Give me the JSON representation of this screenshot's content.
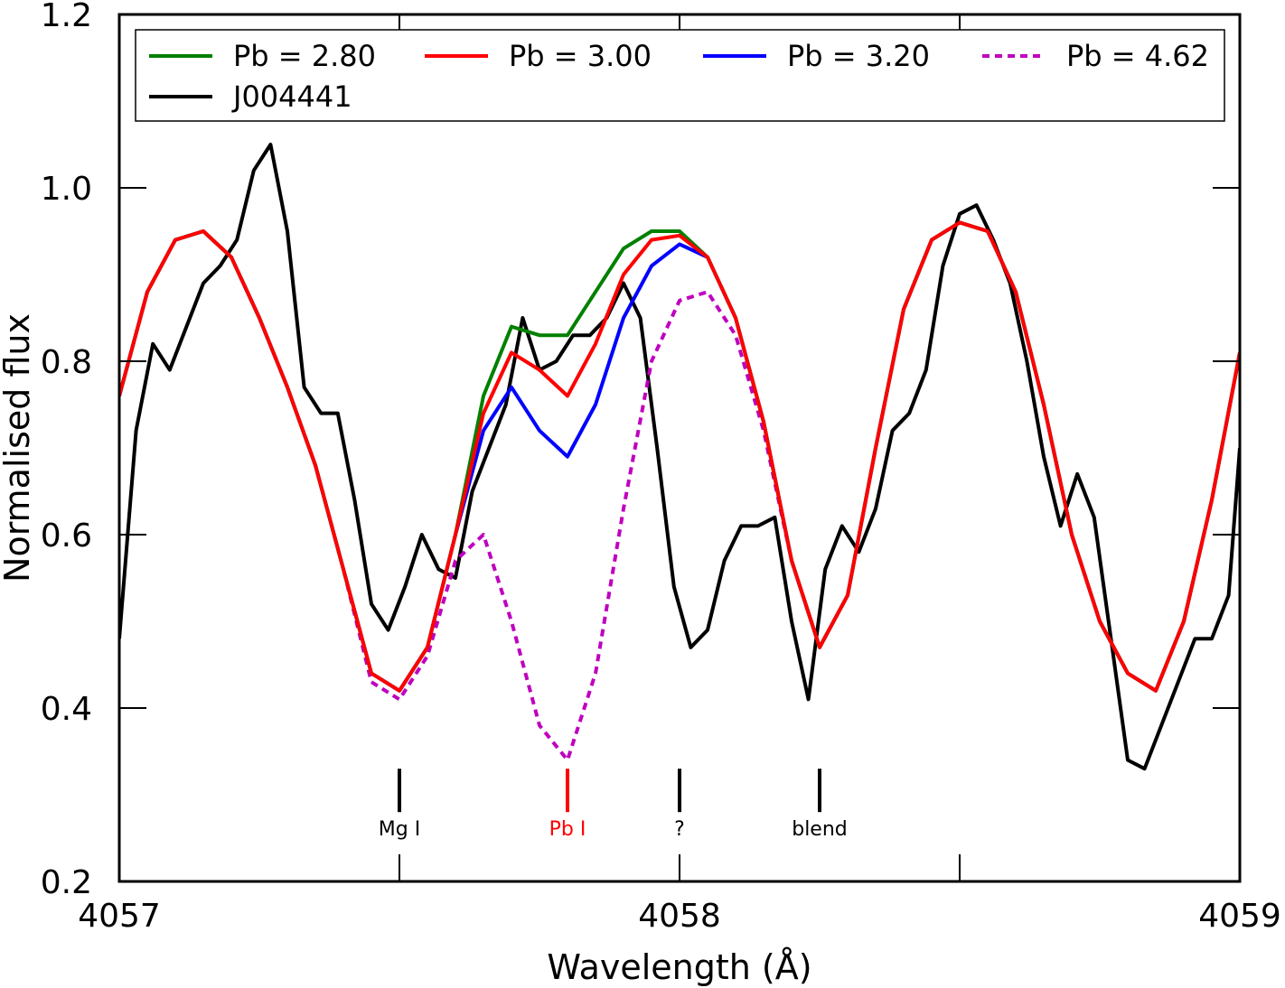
{
  "chart_data": {
    "type": "line",
    "xlabel": "Wavelength (Å)",
    "ylabel": "Normalised flux",
    "xlim": [
      4057,
      4059
    ],
    "ylim": [
      0.2,
      1.2
    ],
    "x_ticks": [
      4057,
      4058,
      4059
    ],
    "x_tick_labels": [
      "4057",
      "4058",
      "4059"
    ],
    "x_minor_ticks": [
      4057.5,
      4058.5
    ],
    "y_ticks": [
      0.2,
      0.4,
      0.6,
      0.8,
      1.0,
      1.2
    ],
    "y_tick_labels": [
      "0.2",
      "0.4",
      "0.6",
      "0.8",
      "1.0",
      "1.2"
    ],
    "legend_position": "top",
    "series": [
      {
        "name": "Pb = 2.80",
        "color": "#008000",
        "dash": false,
        "x": [
          4057.0,
          4057.05,
          4057.1,
          4057.15,
          4057.2,
          4057.25,
          4057.3,
          4057.35,
          4057.4,
          4057.45,
          4057.5,
          4057.55,
          4057.6,
          4057.65,
          4057.7,
          4057.75,
          4057.8,
          4057.85,
          4057.9,
          4057.95,
          4058.0,
          4058.05,
          4058.1,
          4058.15,
          4058.2,
          4058.25,
          4058.3,
          4058.35,
          4058.4,
          4058.45,
          4058.5,
          4058.55,
          4058.6,
          4058.65,
          4058.7,
          4058.75,
          4058.8,
          4058.85,
          4058.9,
          4058.95,
          4059.0
        ],
        "y": [
          0.76,
          0.88,
          0.94,
          0.95,
          0.92,
          0.85,
          0.77,
          0.68,
          0.56,
          0.44,
          0.42,
          0.47,
          0.6,
          0.76,
          0.84,
          0.83,
          0.83,
          0.88,
          0.93,
          0.95,
          0.95,
          0.92,
          0.85,
          0.73,
          0.57,
          0.47,
          0.53,
          0.7,
          0.86,
          0.94,
          0.96,
          0.95,
          0.88,
          0.75,
          0.6,
          0.5,
          0.44,
          0.42,
          0.5,
          0.64,
          0.81
        ]
      },
      {
        "name": "Pb = 3.00",
        "color": "#ff0000",
        "dash": false,
        "x": [
          4057.0,
          4057.05,
          4057.1,
          4057.15,
          4057.2,
          4057.25,
          4057.3,
          4057.35,
          4057.4,
          4057.45,
          4057.5,
          4057.55,
          4057.6,
          4057.65,
          4057.7,
          4057.75,
          4057.8,
          4057.85,
          4057.9,
          4057.95,
          4058.0,
          4058.05,
          4058.1,
          4058.15,
          4058.2,
          4058.25,
          4058.3,
          4058.35,
          4058.4,
          4058.45,
          4058.5,
          4058.55,
          4058.6,
          4058.65,
          4058.7,
          4058.75,
          4058.8,
          4058.85,
          4058.9,
          4058.95,
          4059.0
        ],
        "y": [
          0.76,
          0.88,
          0.94,
          0.95,
          0.92,
          0.85,
          0.77,
          0.68,
          0.56,
          0.44,
          0.42,
          0.47,
          0.6,
          0.74,
          0.81,
          0.79,
          0.76,
          0.82,
          0.9,
          0.94,
          0.945,
          0.92,
          0.85,
          0.73,
          0.57,
          0.47,
          0.53,
          0.7,
          0.86,
          0.94,
          0.96,
          0.95,
          0.88,
          0.75,
          0.6,
          0.5,
          0.44,
          0.42,
          0.5,
          0.64,
          0.81
        ]
      },
      {
        "name": "Pb = 3.20",
        "color": "#0000ff",
        "dash": false,
        "x": [
          4057.0,
          4057.05,
          4057.1,
          4057.15,
          4057.2,
          4057.25,
          4057.3,
          4057.35,
          4057.4,
          4057.45,
          4057.5,
          4057.55,
          4057.6,
          4057.65,
          4057.7,
          4057.75,
          4057.8,
          4057.85,
          4057.9,
          4057.95,
          4058.0,
          4058.05,
          4058.1,
          4058.15,
          4058.2,
          4058.25,
          4058.3,
          4058.35,
          4058.4,
          4058.45,
          4058.5,
          4058.55,
          4058.6,
          4058.65,
          4058.7,
          4058.75,
          4058.8,
          4058.85,
          4058.9,
          4058.95,
          4059.0
        ],
        "y": [
          0.76,
          0.88,
          0.94,
          0.95,
          0.92,
          0.85,
          0.77,
          0.68,
          0.56,
          0.44,
          0.42,
          0.47,
          0.6,
          0.72,
          0.77,
          0.72,
          0.69,
          0.75,
          0.85,
          0.91,
          0.935,
          0.92,
          0.85,
          0.73,
          0.57,
          0.47,
          0.53,
          0.7,
          0.86,
          0.94,
          0.96,
          0.95,
          0.88,
          0.75,
          0.6,
          0.5,
          0.44,
          0.42,
          0.5,
          0.64,
          0.81
        ]
      },
      {
        "name": "Pb = 4.62",
        "color": "#bf00bf",
        "dash": true,
        "x": [
          4057.0,
          4057.05,
          4057.1,
          4057.15,
          4057.2,
          4057.25,
          4057.3,
          4057.35,
          4057.4,
          4057.45,
          4057.5,
          4057.55,
          4057.6,
          4057.65,
          4057.7,
          4057.75,
          4057.8,
          4057.85,
          4057.9,
          4057.95,
          4058.0,
          4058.05,
          4058.1,
          4058.15,
          4058.2,
          4058.25,
          4058.3,
          4058.35,
          4058.4,
          4058.45,
          4058.5,
          4058.55,
          4058.6,
          4058.65,
          4058.7,
          4058.75,
          4058.8,
          4058.85,
          4058.9,
          4058.95,
          4059.0
        ],
        "y": [
          0.76,
          0.88,
          0.94,
          0.95,
          0.92,
          0.85,
          0.77,
          0.68,
          0.56,
          0.43,
          0.41,
          0.46,
          0.57,
          0.6,
          0.5,
          0.38,
          0.34,
          0.44,
          0.63,
          0.8,
          0.87,
          0.88,
          0.83,
          0.72,
          0.57,
          0.47,
          0.53,
          0.7,
          0.86,
          0.94,
          0.96,
          0.95,
          0.88,
          0.75,
          0.6,
          0.5,
          0.44,
          0.42,
          0.5,
          0.64,
          0.81
        ]
      },
      {
        "name": "J004441",
        "color": "#000000",
        "dash": false,
        "x": [
          4057.0,
          4057.03,
          4057.06,
          4057.09,
          4057.12,
          4057.15,
          4057.18,
          4057.21,
          4057.24,
          4057.27,
          4057.3,
          4057.33,
          4057.36,
          4057.39,
          4057.42,
          4057.45,
          4057.48,
          4057.51,
          4057.54,
          4057.57,
          4057.6,
          4057.63,
          4057.66,
          4057.69,
          4057.72,
          4057.75,
          4057.78,
          4057.81,
          4057.84,
          4057.87,
          4057.9,
          4057.93,
          4057.96,
          4057.99,
          4058.02,
          4058.05,
          4058.08,
          4058.11,
          4058.14,
          4058.17,
          4058.2,
          4058.23,
          4058.26,
          4058.29,
          4058.32,
          4058.35,
          4058.38,
          4058.41,
          4058.44,
          4058.47,
          4058.5,
          4058.53,
          4058.56,
          4058.59,
          4058.62,
          4058.65,
          4058.68,
          4058.71,
          4058.74,
          4058.77,
          4058.8,
          4058.83,
          4058.86,
          4058.89,
          4058.92,
          4058.95,
          4058.98,
          4059.0
        ],
        "y": [
          0.48,
          0.72,
          0.82,
          0.79,
          0.84,
          0.89,
          0.91,
          0.94,
          1.02,
          1.05,
          0.95,
          0.77,
          0.74,
          0.74,
          0.64,
          0.52,
          0.49,
          0.54,
          0.6,
          0.56,
          0.55,
          0.65,
          0.7,
          0.75,
          0.85,
          0.79,
          0.8,
          0.83,
          0.83,
          0.85,
          0.89,
          0.85,
          0.7,
          0.54,
          0.47,
          0.49,
          0.57,
          0.61,
          0.61,
          0.62,
          0.5,
          0.41,
          0.56,
          0.61,
          0.58,
          0.63,
          0.72,
          0.74,
          0.79,
          0.91,
          0.97,
          0.98,
          0.94,
          0.89,
          0.8,
          0.69,
          0.61,
          0.67,
          0.62,
          0.48,
          0.34,
          0.33,
          0.38,
          0.43,
          0.48,
          0.48,
          0.53,
          0.7
        ]
      }
    ],
    "line_markers": [
      {
        "x": 4057.5,
        "label": "Mg I",
        "color": "#000000"
      },
      {
        "x": 4057.8,
        "label": "Pb I",
        "color": "#ff0000"
      },
      {
        "x": 4058.0,
        "label": "?",
        "color": "#000000"
      },
      {
        "x": 4058.25,
        "label": "blend",
        "color": "#000000"
      }
    ],
    "line_marker_y_range": [
      0.28,
      0.33
    ]
  }
}
